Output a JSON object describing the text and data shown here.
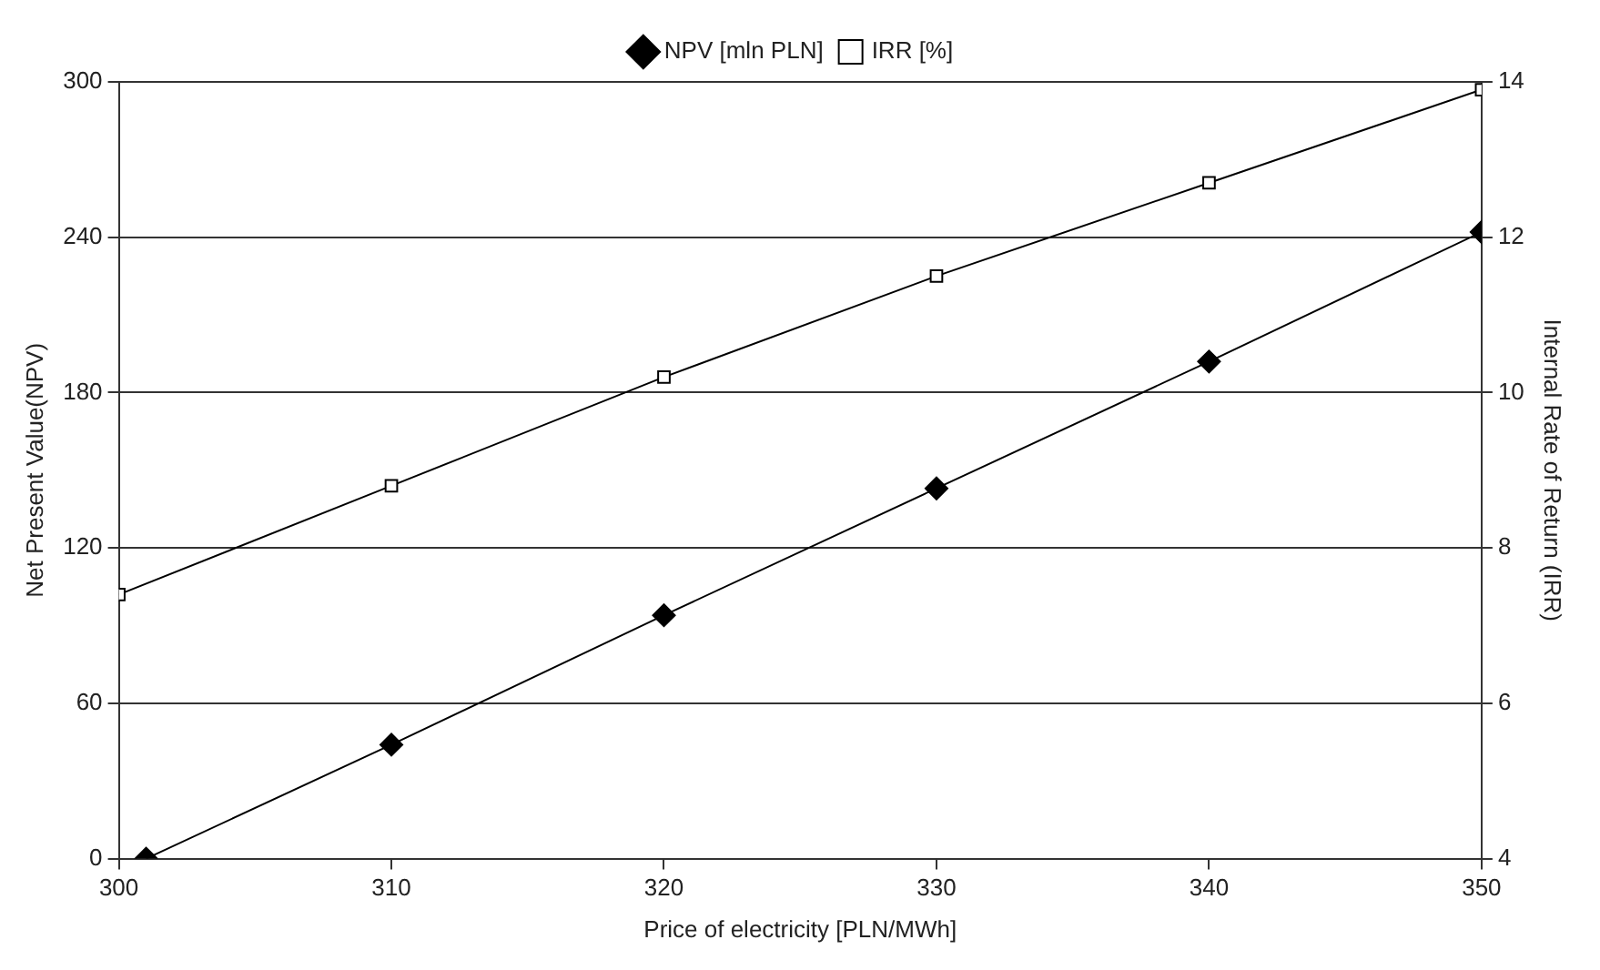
{
  "chart_data": {
    "type": "line",
    "xlabel": "Price of electricity [PLN/MWh]",
    "ylabel": "Net Present Value(NPV)",
    "y2label": "Internal Rate of Return (IRR)",
    "xlim": [
      300,
      350
    ],
    "xticks": [
      300,
      310,
      320,
      330,
      340,
      350
    ],
    "ylim": [
      0,
      300
    ],
    "yticks": [
      0,
      60,
      120,
      180,
      240,
      300
    ],
    "y2lim": [
      4,
      14
    ],
    "y2ticks": [
      4,
      6,
      8,
      10,
      12,
      14
    ],
    "grid": "y",
    "legend": "top",
    "line_style": "solid",
    "series": [
      {
        "name": "NPV [mln PLN]",
        "color": "#000000",
        "marker": "diamond",
        "x": [
          301,
          310,
          320,
          330,
          340,
          350
        ],
        "values": [
          0,
          44,
          94,
          143,
          192,
          242
        ]
      },
      {
        "name": "IRR [%]",
        "color": "#000000",
        "marker": "square",
        "axis": "y2",
        "x": [
          300,
          310,
          320,
          330,
          340,
          350
        ],
        "values": [
          7.4,
          8.8,
          10.2,
          11.5,
          12.7,
          13.9
        ]
      }
    ]
  }
}
